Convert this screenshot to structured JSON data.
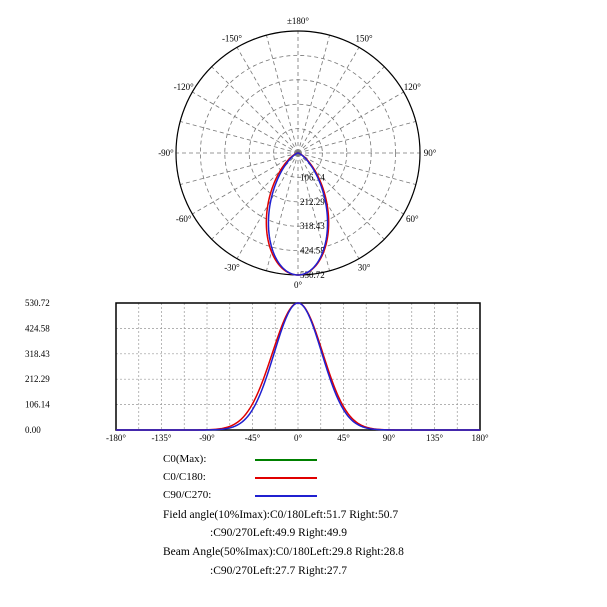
{
  "chart_data": [
    {
      "type": "polar",
      "angle_labels": [
        {
          "deg": 0,
          "text": "0°"
        },
        {
          "deg": -30,
          "text": "-30°"
        },
        {
          "deg": 30,
          "text": "30°"
        },
        {
          "deg": -60,
          "text": "-60°"
        },
        {
          "deg": 60,
          "text": "60°"
        },
        {
          "deg": -90,
          "text": "-90°"
        },
        {
          "deg": 90,
          "text": "90°"
        },
        {
          "deg": -120,
          "text": "-120°"
        },
        {
          "deg": 120,
          "text": "120°"
        },
        {
          "deg": -150,
          "text": "-150°"
        },
        {
          "deg": 150,
          "text": "150°"
        },
        {
          "deg": 180,
          "text": "±180°"
        }
      ],
      "radial_ticks": [
        106.14,
        212.29,
        318.43,
        424.58,
        530.72
      ],
      "radial_tick_labels": [
        "106.14",
        "212.29",
        "318.43",
        "424.58",
        "530.72"
      ],
      "rmax": 530.72,
      "grid": true
    },
    {
      "type": "line",
      "x_ticks": [
        -180,
        -135,
        -90,
        -45,
        0,
        45,
        90,
        135,
        180
      ],
      "x_tick_labels": [
        "-180°",
        "-135°",
        "-90°",
        "-45°",
        "0°",
        "45°",
        "90°",
        "135°",
        "180°"
      ],
      "y_ticks": [
        0,
        106.14,
        212.29,
        318.43,
        424.58,
        530.72
      ],
      "y_tick_labels": [
        "0.00",
        "106.14",
        "212.29",
        "318.43",
        "424.58",
        "530.72"
      ],
      "xlim": [
        -180,
        180
      ],
      "ylim": [
        0,
        530.72
      ],
      "grid": true,
      "peak": 530.72,
      "series": [
        {
          "name": "C0(Max):",
          "color": "#008000",
          "half_width_left": 29.8,
          "half_width_right": 28.8,
          "field_left": 51.7,
          "field_right": 50.7
        },
        {
          "name": "C0/C180:",
          "color": "#e00000",
          "half_width_left": 29.8,
          "half_width_right": 28.8,
          "field_left": 51.7,
          "field_right": 50.7
        },
        {
          "name": "C90/C270:",
          "color": "#2020d0",
          "half_width_left": 27.7,
          "half_width_right": 27.7,
          "field_left": 49.9,
          "field_right": 49.9
        }
      ]
    }
  ],
  "legend": [
    {
      "label": "C0(Max):",
      "color": "#008000"
    },
    {
      "label": "C0/C180:",
      "color": "#e00000"
    },
    {
      "label": "C90/C270:",
      "color": "#2020d0"
    }
  ],
  "info": {
    "field_line1": "Field angle(10%Imax):C0/180Left:51.7 Right:50.7",
    "field_line2": ":C90/270Left:49.9 Right:49.9",
    "beam_line1": "Beam Angle(50%Imax):C0/180Left:29.8 Right:28.8",
    "beam_line2": ":C90/270Left:27.7 Right:27.7"
  }
}
